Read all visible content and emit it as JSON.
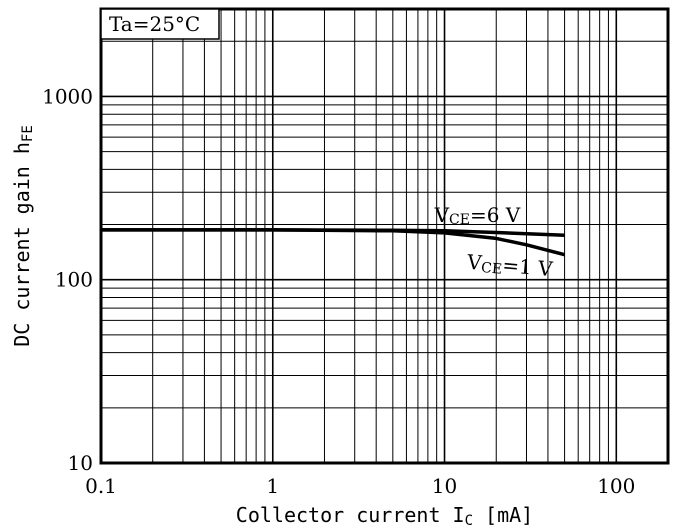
{
  "chart_data": {
    "type": "line",
    "x_scale": "log",
    "y_scale": "log",
    "xlabel_main": "Collector current I",
    "xlabel_sub": "C",
    "xlabel_unit": " [mA]",
    "ylabel_main": "DC current gain h",
    "ylabel_sub": "FE",
    "xlim": [
      0.1,
      200
    ],
    "ylim": [
      10,
      3000
    ],
    "x_ticks": [
      {
        "value": 0.1,
        "label": "0.1"
      },
      {
        "value": 1,
        "label": "1"
      },
      {
        "value": 10,
        "label": "10"
      },
      {
        "value": 100,
        "label": "100"
      }
    ],
    "y_ticks": [
      {
        "value": 10,
        "label": "10"
      },
      {
        "value": 100,
        "label": "100"
      },
      {
        "value": 1000,
        "label": "1000"
      }
    ],
    "grid": true,
    "condition": "Ta=25°C",
    "series": [
      {
        "label_main": "V",
        "label_sub": "CE",
        "label_value": "=6 V",
        "x": [
          0.1,
          1,
          5,
          10,
          20,
          50
        ],
        "y": [
          187,
          187,
          186,
          185,
          181,
          175
        ]
      },
      {
        "label_main": "V",
        "label_sub": "CE",
        "label_value": "=1 V",
        "x": [
          0.1,
          1,
          5,
          10,
          20,
          30,
          50
        ],
        "y": [
          187,
          187,
          185,
          180,
          168,
          155,
          137
        ]
      }
    ]
  }
}
